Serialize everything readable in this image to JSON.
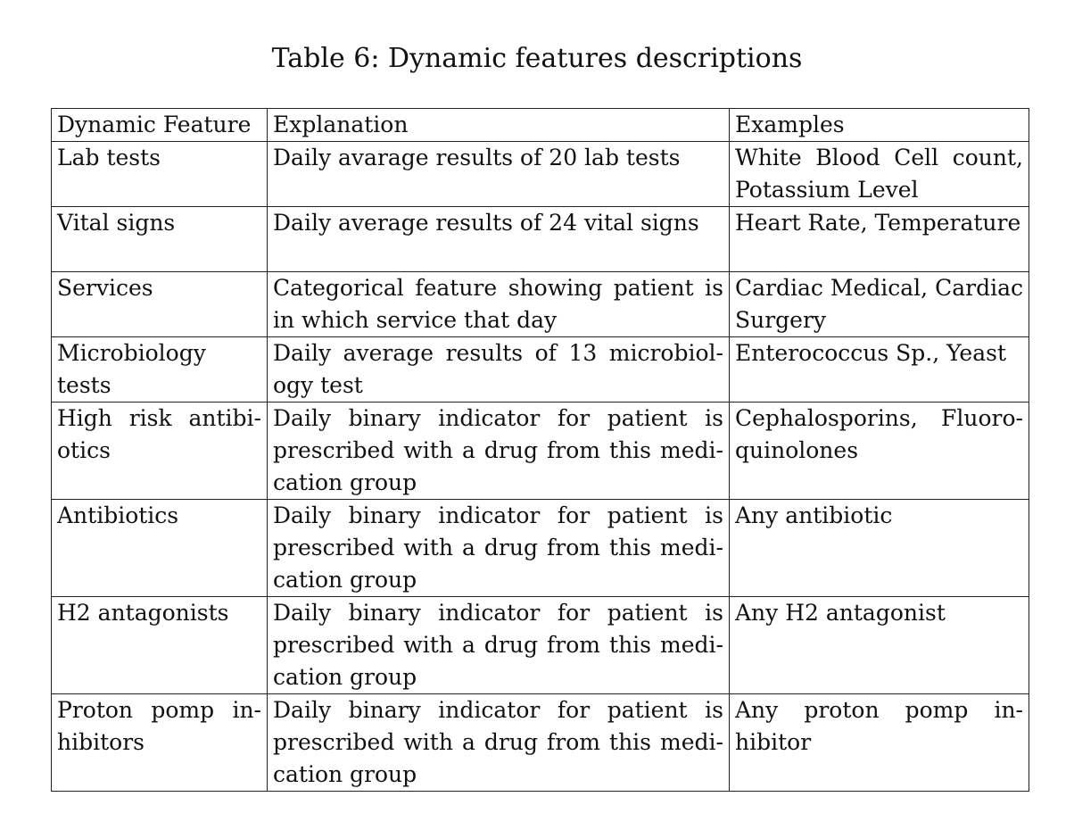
{
  "caption": "Table 6: Dynamic features descriptions",
  "table": {
    "headers": {
      "feature": "Dynamic Feature",
      "explanation": "Explanation",
      "examples": "Examples"
    },
    "rows": [
      {
        "feature": "Lab tests",
        "explanation": "Daily avarage results of 20 lab tests",
        "examples": "White Blood Cell count, Potassium Level"
      },
      {
        "feature": "Vital signs",
        "explanation": "Daily average results of 24 vital signs",
        "examples": "Heart Rate, Tempera­ture"
      },
      {
        "feature": "Services",
        "explanation": "Categorical feature showing patient is in which service that day",
        "examples": "Cardiac Medical, Car­diac Surgery"
      },
      {
        "feature": "Microbiology tests",
        "explanation": "Daily average results of 13 microbiol­ogy test",
        "examples": "Enterococcus Sp., Yeast"
      },
      {
        "feature": "High risk antibi­otics",
        "explanation": "Daily binary indicator for patient is prescribed with a drug from this medi­cation group",
        "examples": "Cephalosporins, Fluoro­quinolones"
      },
      {
        "feature": "Antibiotics",
        "explanation": "Daily binary indicator for patient is prescribed with a drug from this medi­cation group",
        "examples": "Any antibiotic"
      },
      {
        "feature": "H2 antagonists",
        "explanation": "Daily binary indicator for patient is prescribed with a drug from this medi­cation group",
        "examples": "Any H2 antagonist"
      },
      {
        "feature": "Proton pomp in­hibitors",
        "explanation": "Daily binary indicator for patient is prescribed with a drug from this medi­cation group",
        "examples": "Any proton pomp in­hibitor"
      }
    ]
  }
}
